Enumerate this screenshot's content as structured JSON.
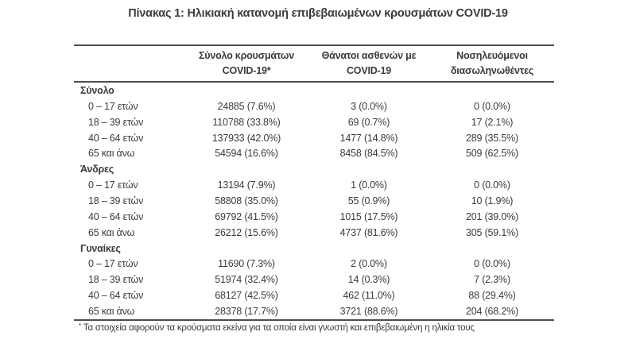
{
  "title": "Πίνακας 1: Ηλικιακή κατανομή επιβεβαιωμένων κρουσμάτων COVID-19",
  "table": {
    "column_headers": [
      {
        "line1": "Σύνολο κρουσμάτων",
        "line2": "COVID-19*"
      },
      {
        "line1": "Θάνατοι ασθενών με",
        "line2": "COVID-19"
      },
      {
        "line1": "Νοσηλευόμενοι",
        "line2": "διασωληνωθέντες"
      }
    ],
    "sections": [
      {
        "label": "Σύνολο",
        "rows": [
          {
            "label": "0 – 17 ετών",
            "cases": "24885 (7.6%)",
            "deaths": "3 (0.0%)",
            "intubated": "0 (0.0%)"
          },
          {
            "label": "18 – 39 ετών",
            "cases": "110788 (33.8%)",
            "deaths": "69 (0.7%)",
            "intubated": "17 (2.1%)"
          },
          {
            "label": "40 – 64 ετών",
            "cases": "137933 (42.0%)",
            "deaths": "1477 (14.8%)",
            "intubated": "289 (35.5%)"
          },
          {
            "label": "65 και άνω",
            "cases": "54594 (16.6%)",
            "deaths": "8458 (84.5%)",
            "intubated": "509 (62.5%)"
          }
        ]
      },
      {
        "label": "Άνδρες",
        "rows": [
          {
            "label": "0 – 17 ετών",
            "cases": "13194 (7.9%)",
            "deaths": "1 (0.0%)",
            "intubated": "0 (0.0%)"
          },
          {
            "label": "18 – 39 ετών",
            "cases": "58808 (35.0%)",
            "deaths": "55 (0.9%)",
            "intubated": "10 (1.9%)"
          },
          {
            "label": "40 – 64 ετών",
            "cases": "69792 (41.5%)",
            "deaths": "1015 (17.5%)",
            "intubated": "201 (39.0%)"
          },
          {
            "label": "65 και άνω",
            "cases": "26212 (15.6%)",
            "deaths": "4737 (81.6%)",
            "intubated": "305 (59.1%)"
          }
        ]
      },
      {
        "label": "Γυναίκες",
        "rows": [
          {
            "label": "0 – 17 ετών",
            "cases": "11690 (7.3%)",
            "deaths": "2 (0.0%)",
            "intubated": "0 (0.0%)"
          },
          {
            "label": "18 – 39 ετών",
            "cases": "51974 (32.4%)",
            "deaths": "14 (0.3%)",
            "intubated": "7 (2.3%)"
          },
          {
            "label": "40 – 64 ετών",
            "cases": "68127 (42.5%)",
            "deaths": "462 (11.0%)",
            "intubated": "88 (29.4%)"
          },
          {
            "label": "65 και άνω",
            "cases": "28378 (17.7%)",
            "deaths": "3721 (88.6%)",
            "intubated": "204 (68.2%)"
          }
        ]
      }
    ],
    "footnote": {
      "marker": "*",
      "text": "Τα στοιχεία αφορούν τα κρούσματα εκείνα για τα οποία είναι γνωστή και επιβεβαιωμένη η ηλικία τους"
    }
  },
  "colors": {
    "text": "#3b3b3b",
    "rule": "#4d4d4d",
    "background": "#ffffff"
  }
}
